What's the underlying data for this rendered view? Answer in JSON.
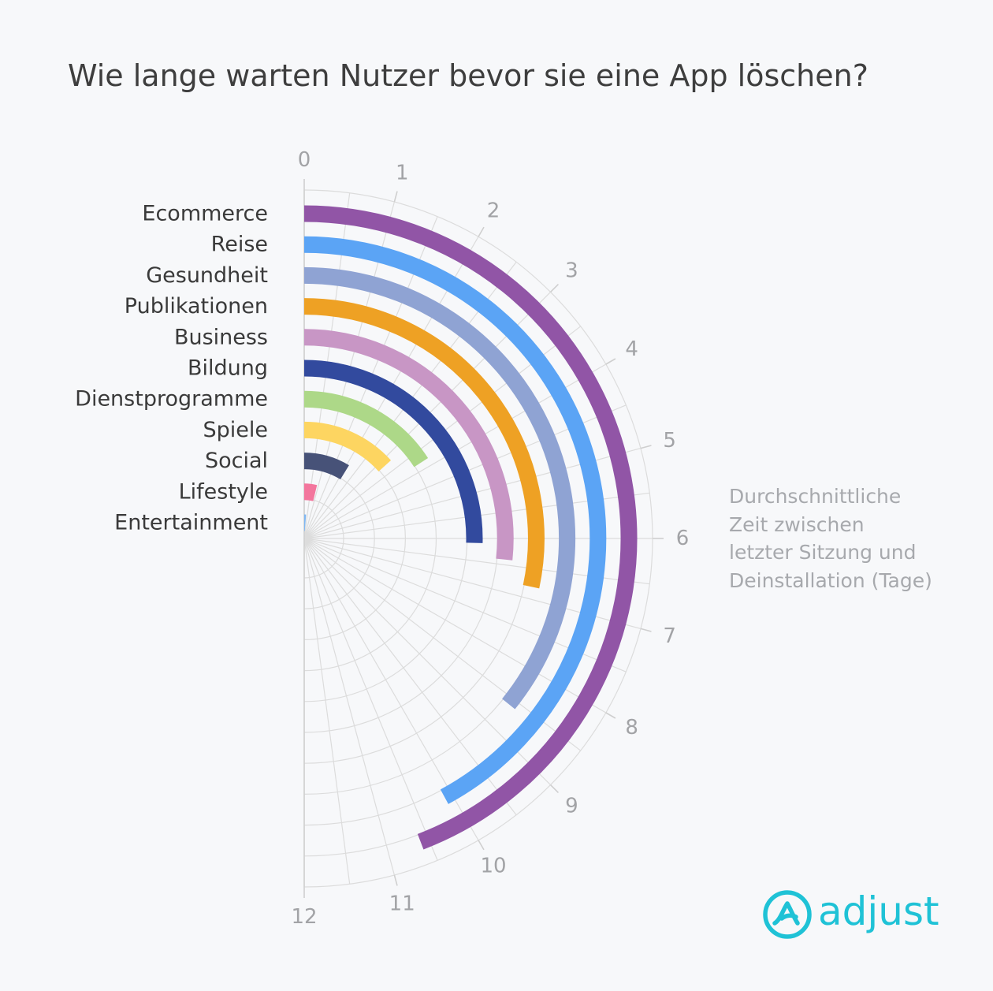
{
  "title": "Wie lange warten Nutzer bevor sie eine App löschen?",
  "axis_note": [
    "Durchschnittliche",
    "Zeit zwischen",
    "letzter Sitzung und",
    "Deinstallation (Tage)"
  ],
  "logo": {
    "text": "adjust",
    "color": "#1fc2d6"
  },
  "chart_data": {
    "type": "radial-bar",
    "title": "Wie lange warten Nutzer bevor sie eine App löschen?",
    "axis_label": "Durchschnittliche Zeit zwischen letzter Sitzung und Deinstallation (Tage)",
    "axis_range": [
      0,
      12
    ],
    "ticks": [
      0,
      1,
      2,
      3,
      4,
      5,
      6,
      7,
      8,
      9,
      10,
      11,
      12
    ],
    "grid": true,
    "categories": [
      "Ecommerce",
      "Reise",
      "Gesundheit",
      "Publikationen",
      "Business",
      "Bildung",
      "Dienstprogramme",
      "Spiele",
      "Social",
      "Lifestyle",
      "Entertainment"
    ],
    "values": [
      10.6,
      10.1,
      8.6,
      6.8,
      6.4,
      6.1,
      3.8,
      3.2,
      2.1,
      0.9,
      0.3
    ],
    "colors": [
      "#9155a6",
      "#5ba4f5",
      "#8fa3d3",
      "#eea124",
      "#c896c5",
      "#324a9e",
      "#add888",
      "#fdd561",
      "#475278",
      "#f3769d",
      "#7fb7f2"
    ]
  }
}
